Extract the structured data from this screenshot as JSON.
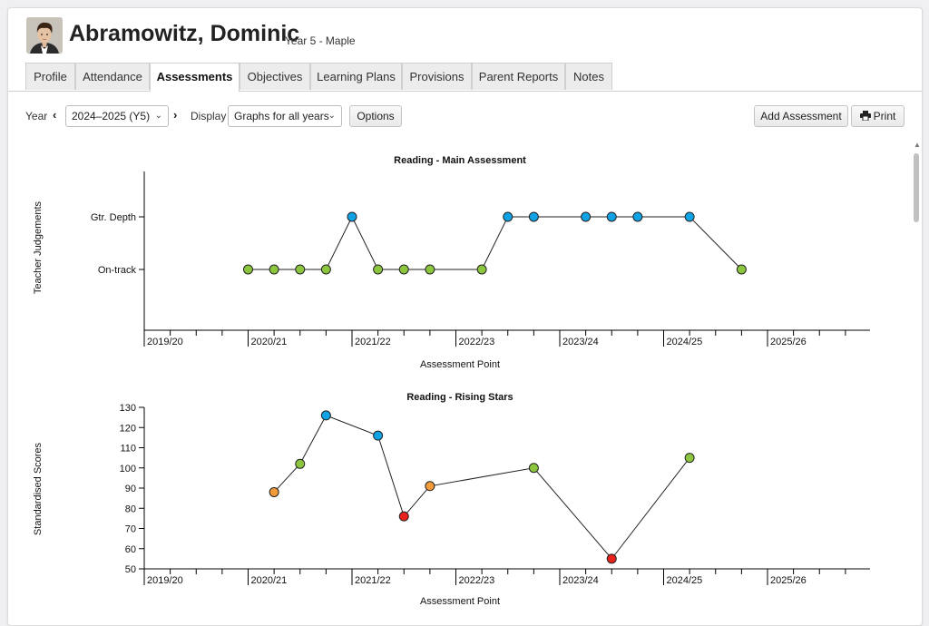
{
  "student": {
    "name": "Abramowitz, Dominic",
    "subtitle": "Year 5 - Maple"
  },
  "tabs": [
    {
      "label": "Profile",
      "active": false
    },
    {
      "label": "Attendance",
      "active": false
    },
    {
      "label": "Assessments",
      "active": true
    },
    {
      "label": "Objectives",
      "active": false
    },
    {
      "label": "Learning Plans",
      "active": false
    },
    {
      "label": "Provisions",
      "active": false
    },
    {
      "label": "Parent Reports",
      "active": false
    },
    {
      "label": "Notes",
      "active": false
    }
  ],
  "toolbar": {
    "year_label": "Year",
    "year_value": "2024–2025 (Y5)",
    "display_label": "Display",
    "display_value": "Graphs for all years",
    "options_button": "Options",
    "add_assessment_button": "Add Assessment",
    "print_button": "Print"
  },
  "colors": {
    "green": "#8cc63f",
    "blue": "#0fa3e6",
    "orange": "#f39a3b",
    "red": "#e8231e"
  },
  "chart_data": [
    {
      "type": "line",
      "title": "Reading - Main Assessment",
      "xlabel": "Assessment Point",
      "ylabel": "Teacher Judgements",
      "x_ticks": [
        "2019/20",
        "2020/21",
        "2021/22",
        "2022/23",
        "2023/24",
        "2024/25",
        "2025/26"
      ],
      "y_categories": [
        "On-track",
        "Gtr. Depth"
      ],
      "grid": false,
      "points": [
        {
          "x": 1.0,
          "y": "On-track",
          "color": "green"
        },
        {
          "x": 1.25,
          "y": "On-track",
          "color": "green"
        },
        {
          "x": 1.5,
          "y": "On-track",
          "color": "green"
        },
        {
          "x": 1.75,
          "y": "On-track",
          "color": "green"
        },
        {
          "x": 2.0,
          "y": "Gtr. Depth",
          "color": "blue"
        },
        {
          "x": 2.25,
          "y": "On-track",
          "color": "green"
        },
        {
          "x": 2.5,
          "y": "On-track",
          "color": "green"
        },
        {
          "x": 2.75,
          "y": "On-track",
          "color": "green"
        },
        {
          "x": 3.25,
          "y": "On-track",
          "color": "green"
        },
        {
          "x": 3.5,
          "y": "Gtr. Depth",
          "color": "blue"
        },
        {
          "x": 3.75,
          "y": "Gtr. Depth",
          "color": "blue"
        },
        {
          "x": 4.25,
          "y": "Gtr. Depth",
          "color": "blue"
        },
        {
          "x": 4.5,
          "y": "Gtr. Depth",
          "color": "blue"
        },
        {
          "x": 4.75,
          "y": "Gtr. Depth",
          "color": "blue"
        },
        {
          "x": 5.25,
          "y": "Gtr. Depth",
          "color": "blue"
        },
        {
          "x": 5.75,
          "y": "On-track",
          "color": "green"
        }
      ]
    },
    {
      "type": "line",
      "title": "Reading - Rising Stars",
      "xlabel": "Assessment Point",
      "ylabel": "Standardised Scores",
      "x_ticks": [
        "2019/20",
        "2020/21",
        "2021/22",
        "2022/23",
        "2023/24",
        "2024/25",
        "2025/26"
      ],
      "ylim": [
        50,
        130
      ],
      "y_ticks": [
        50,
        60,
        70,
        80,
        90,
        100,
        110,
        120,
        130
      ],
      "grid": false,
      "points": [
        {
          "x": 1.25,
          "y": 88,
          "color": "orange"
        },
        {
          "x": 1.5,
          "y": 102,
          "color": "green"
        },
        {
          "x": 1.75,
          "y": 126,
          "color": "blue"
        },
        {
          "x": 2.25,
          "y": 116,
          "color": "blue"
        },
        {
          "x": 2.5,
          "y": 76,
          "color": "red"
        },
        {
          "x": 2.75,
          "y": 91,
          "color": "orange"
        },
        {
          "x": 3.75,
          "y": 100,
          "color": "green"
        },
        {
          "x": 4.5,
          "y": 55,
          "color": "red"
        },
        {
          "x": 5.25,
          "y": 105,
          "color": "green"
        }
      ]
    }
  ]
}
